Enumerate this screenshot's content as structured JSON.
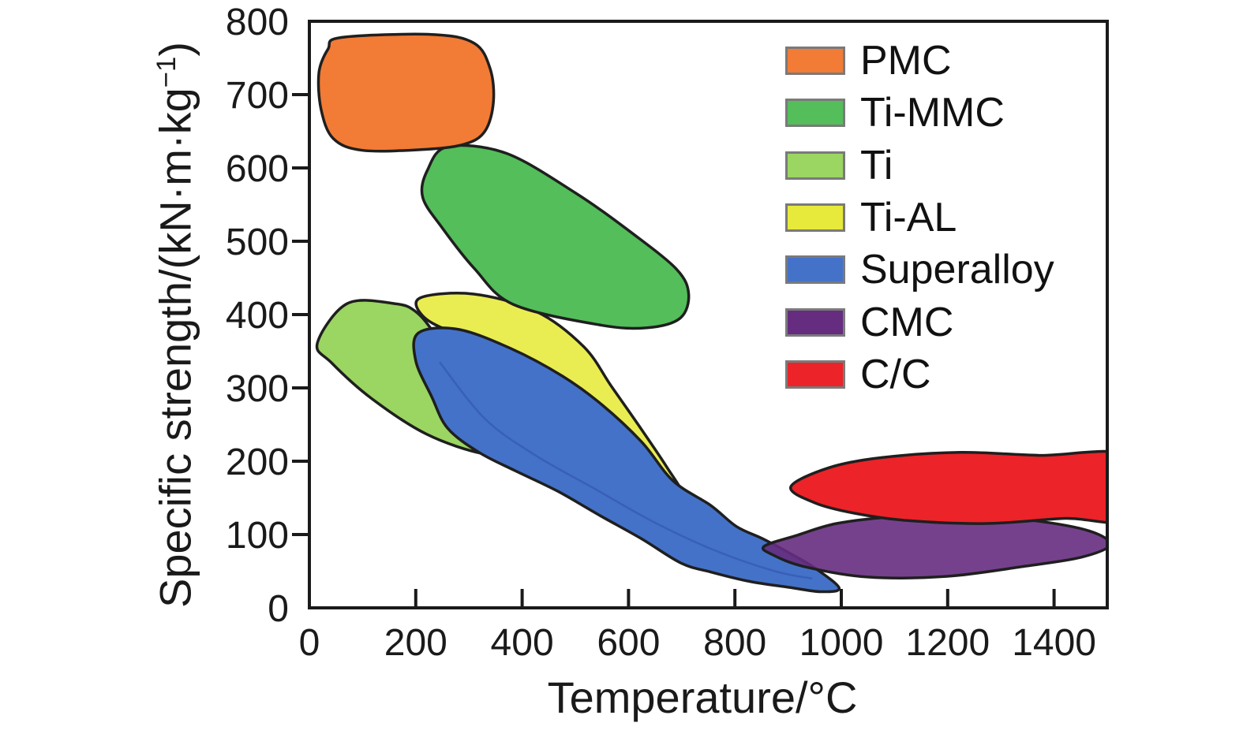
{
  "chart_data": {
    "type": "area",
    "title": "",
    "xlabel": "Temperature/°C",
    "ylabel": "Specific strength/(kN·m·kg⁻¹)",
    "ylabel_parts": {
      "prefix": "Specific strength/(kN·m·kg",
      "sup": "−1",
      "suffix": ")"
    },
    "xlim": [
      0,
      1500
    ],
    "ylim": [
      0,
      800
    ],
    "x_ticks": [
      0,
      200,
      400,
      600,
      800,
      1000,
      1200,
      1400
    ],
    "y_ticks": [
      0,
      100,
      200,
      300,
      400,
      500,
      600,
      700,
      800
    ],
    "grid": false,
    "legend_position": "top-right",
    "axis_color": "#1a1a1a",
    "outline_color": "#1f1f1f",
    "regions": [
      {
        "name": "PMC",
        "color": "#F27B35",
        "fill_opacity": 1,
        "z": 5,
        "temperature_range_C": [
          20,
          350
        ],
        "strength_range": [
          625,
          780
        ],
        "outline": [
          [
            60,
            778
          ],
          [
            230,
            782
          ],
          [
            310,
            770
          ],
          [
            340,
            735
          ],
          [
            346,
            690
          ],
          [
            330,
            650
          ],
          [
            290,
            632
          ],
          [
            210,
            625
          ],
          [
            100,
            624
          ],
          [
            45,
            640
          ],
          [
            22,
            680
          ],
          [
            18,
            730
          ],
          [
            35,
            762
          ]
        ]
      },
      {
        "name": "Ti-MMC",
        "color": "#53BE5A",
        "fill_opacity": 1,
        "z": 4,
        "temperature_range_C": [
          210,
          715
        ],
        "strength_range": [
          380,
          630
        ],
        "outline": [
          [
            260,
            629
          ],
          [
            370,
            620
          ],
          [
            500,
            566
          ],
          [
            605,
            512
          ],
          [
            690,
            462
          ],
          [
            713,
            428
          ],
          [
            697,
            395
          ],
          [
            635,
            382
          ],
          [
            545,
            386
          ],
          [
            383,
            414
          ],
          [
            310,
            463
          ],
          [
            250,
            518
          ],
          [
            213,
            560
          ],
          [
            222,
            597
          ]
        ]
      },
      {
        "name": "Ti",
        "color": "#9BD562",
        "fill_opacity": 1,
        "z": 1,
        "temperature_range_C": [
          15,
          390
        ],
        "strength_range": [
          210,
          420
        ],
        "outline": [
          [
            15,
            361
          ],
          [
            71,
            415
          ],
          [
            160,
            415
          ],
          [
            200,
            404
          ],
          [
            239,
            370
          ],
          [
            309,
            291
          ],
          [
            368,
            232
          ],
          [
            390,
            213
          ],
          [
            328,
            210
          ],
          [
            220,
            237
          ],
          [
            116,
            286
          ],
          [
            42,
            334
          ]
        ]
      },
      {
        "name": "Ti-AL",
        "color": "#E7EA3A",
        "fill_opacity": 0.88,
        "z": 2,
        "temperature_range_C": [
          210,
          705
        ],
        "strength_range": [
          130,
          430
        ],
        "outline": [
          [
            209,
            423
          ],
          [
            309,
            428
          ],
          [
            427,
            404
          ],
          [
            516,
            356
          ],
          [
            568,
            302
          ],
          [
            620,
            248
          ],
          [
            672,
            192
          ],
          [
            703,
            153
          ],
          [
            691,
            129
          ],
          [
            635,
            129
          ],
          [
            576,
            194
          ],
          [
            487,
            291
          ],
          [
            383,
            345
          ],
          [
            264,
            377
          ],
          [
            212,
            399
          ]
        ]
      },
      {
        "name": "Superalloy",
        "color": "#4472C8",
        "fill_opacity": 1,
        "z": 3,
        "temperature_range_C": [
          200,
          1000
        ],
        "strength_range": [
          20,
          380
        ],
        "outline": [
          [
            205,
            375
          ],
          [
            279,
            380
          ],
          [
            378,
            354
          ],
          [
            476,
            316
          ],
          [
            550,
            277
          ],
          [
            625,
            226
          ],
          [
            684,
            173
          ],
          [
            754,
            140
          ],
          [
            803,
            111
          ],
          [
            853,
            94
          ],
          [
            902,
            75
          ],
          [
            951,
            54
          ],
          [
            996,
            27
          ],
          [
            961,
            22
          ],
          [
            902,
            28
          ],
          [
            828,
            36
          ],
          [
            754,
            49
          ],
          [
            699,
            61
          ],
          [
            625,
            94
          ],
          [
            546,
            126
          ],
          [
            467,
            159
          ],
          [
            387,
            187
          ],
          [
            319,
            212
          ],
          [
            260,
            245
          ],
          [
            230,
            288
          ],
          [
            200,
            337
          ]
        ]
      },
      {
        "name": "CMC",
        "color": "#662C80",
        "fill_opacity": 0.9,
        "z": 6,
        "temperature_range_C": [
          855,
          1500
        ],
        "strength_range": [
          40,
          127
        ],
        "outline": [
          [
            855,
            84
          ],
          [
            917,
            99
          ],
          [
            991,
            115
          ],
          [
            1095,
            124
          ],
          [
            1228,
            127
          ],
          [
            1362,
            119
          ],
          [
            1466,
            105
          ],
          [
            1505,
            86
          ],
          [
            1451,
            69
          ],
          [
            1347,
            57
          ],
          [
            1199,
            43
          ],
          [
            1050,
            42
          ],
          [
            932,
            56
          ],
          [
            872,
            72
          ]
        ]
      },
      {
        "name": "C/C",
        "color": "#EC2328",
        "fill_opacity": 1,
        "z": 7,
        "temperature_range_C": [
          905,
          1500
        ],
        "strength_range": [
          115,
          212
        ],
        "outline": [
          [
            905,
            165
          ],
          [
            976,
            191
          ],
          [
            1076,
            205
          ],
          [
            1224,
            212
          ],
          [
            1372,
            208
          ],
          [
            1540,
            207
          ],
          [
            1540,
            122
          ],
          [
            1421,
            122
          ],
          [
            1273,
            115
          ],
          [
            1125,
            119
          ],
          [
            1025,
            129
          ],
          [
            951,
            143
          ]
        ]
      }
    ],
    "inner_lines": [
      {
        "region": "Superalloy",
        "color": "#2b4ea8",
        "opacity": 0.5,
        "points": [
          [
            245,
            335
          ],
          [
            330,
            258
          ],
          [
            425,
            208
          ],
          [
            535,
            163
          ],
          [
            645,
            118
          ],
          [
            760,
            79
          ],
          [
            875,
            50
          ],
          [
            945,
            40
          ]
        ]
      }
    ]
  }
}
